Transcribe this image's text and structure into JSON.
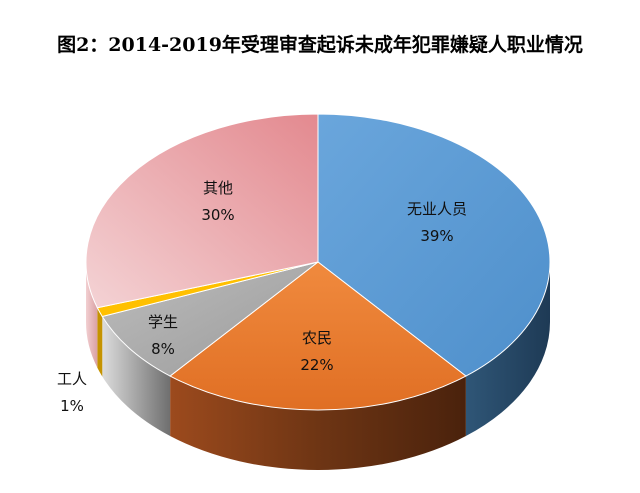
{
  "chart_data": {
    "type": "pie",
    "title": "图2：2014-2019年受理审查起诉未成年犯罪嫌疑人职业情况",
    "style": "3d-pie",
    "slices": [
      {
        "name": "无业人员",
        "value": 39,
        "label": "39%",
        "color": "#5b9bd5",
        "side_color": "#24425e"
      },
      {
        "name": "农民",
        "value": 22,
        "label": "22%",
        "color": "#ed7d31",
        "side_color": "#6b3515"
      },
      {
        "name": "学生",
        "value": 8,
        "label": "8%",
        "color": "#a5a5a5",
        "side_color": "#6e6e6e"
      },
      {
        "name": "工人",
        "value": 1,
        "label": "1%",
        "color": "#ffc000",
        "side_color": "#c59300"
      },
      {
        "name": "其他",
        "value": 30,
        "label": "30%",
        "color": "#e6a0a4",
        "side_color": "#c98b8f"
      }
    ]
  }
}
